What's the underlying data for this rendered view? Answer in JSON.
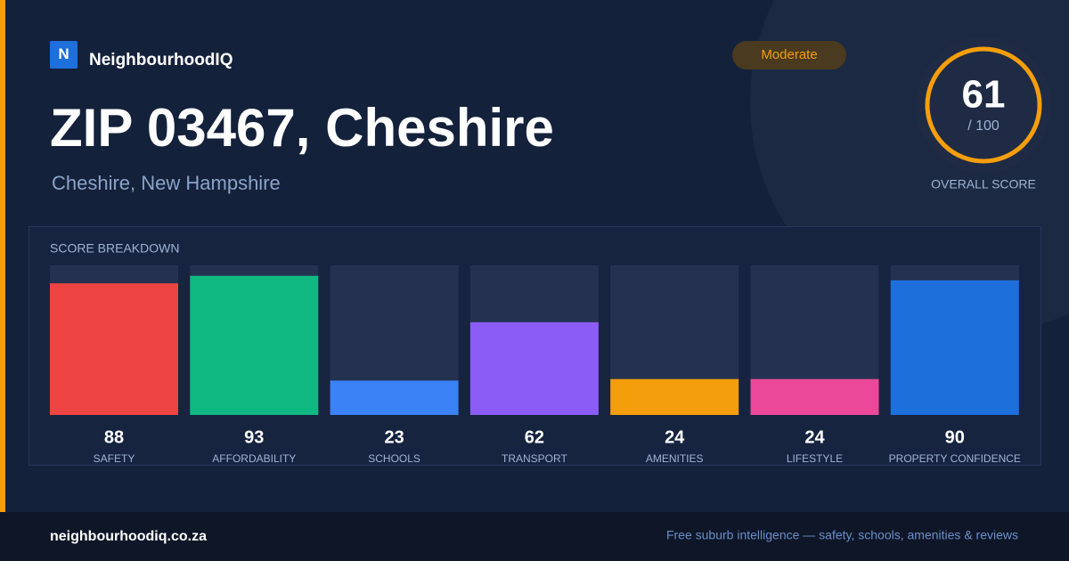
{
  "brand": {
    "logo": "N",
    "name": "NeighbourhoodIQ"
  },
  "badge": "Moderate",
  "title": "ZIP 03467, Cheshire",
  "subtitle": "Cheshire, New Hampshire",
  "overall": {
    "score": 61,
    "max_label": "/ 100",
    "label": "OVERALL SCORE"
  },
  "chart_data": {
    "type": "bar",
    "title": "SCORE BREAKDOWN",
    "categories": [
      "SAFETY",
      "AFFORDABILITY",
      "SCHOOLS",
      "TRANSPORT",
      "AMENITIES",
      "LIFESTYLE",
      "PROPERTY CONFIDENCE"
    ],
    "values": [
      88,
      93,
      23,
      62,
      24,
      24,
      90
    ],
    "colors": [
      "#ef4444",
      "#10b981",
      "#3b82f6",
      "#8b5cf6",
      "#f59e0b",
      "#ec4899",
      "#1d6fdb"
    ],
    "ylim": [
      0,
      100
    ]
  },
  "footer": {
    "site": "neighbourhoodiq.co.za",
    "tagline": "Free suburb intelligence — safety, schools, amenities & reviews"
  }
}
